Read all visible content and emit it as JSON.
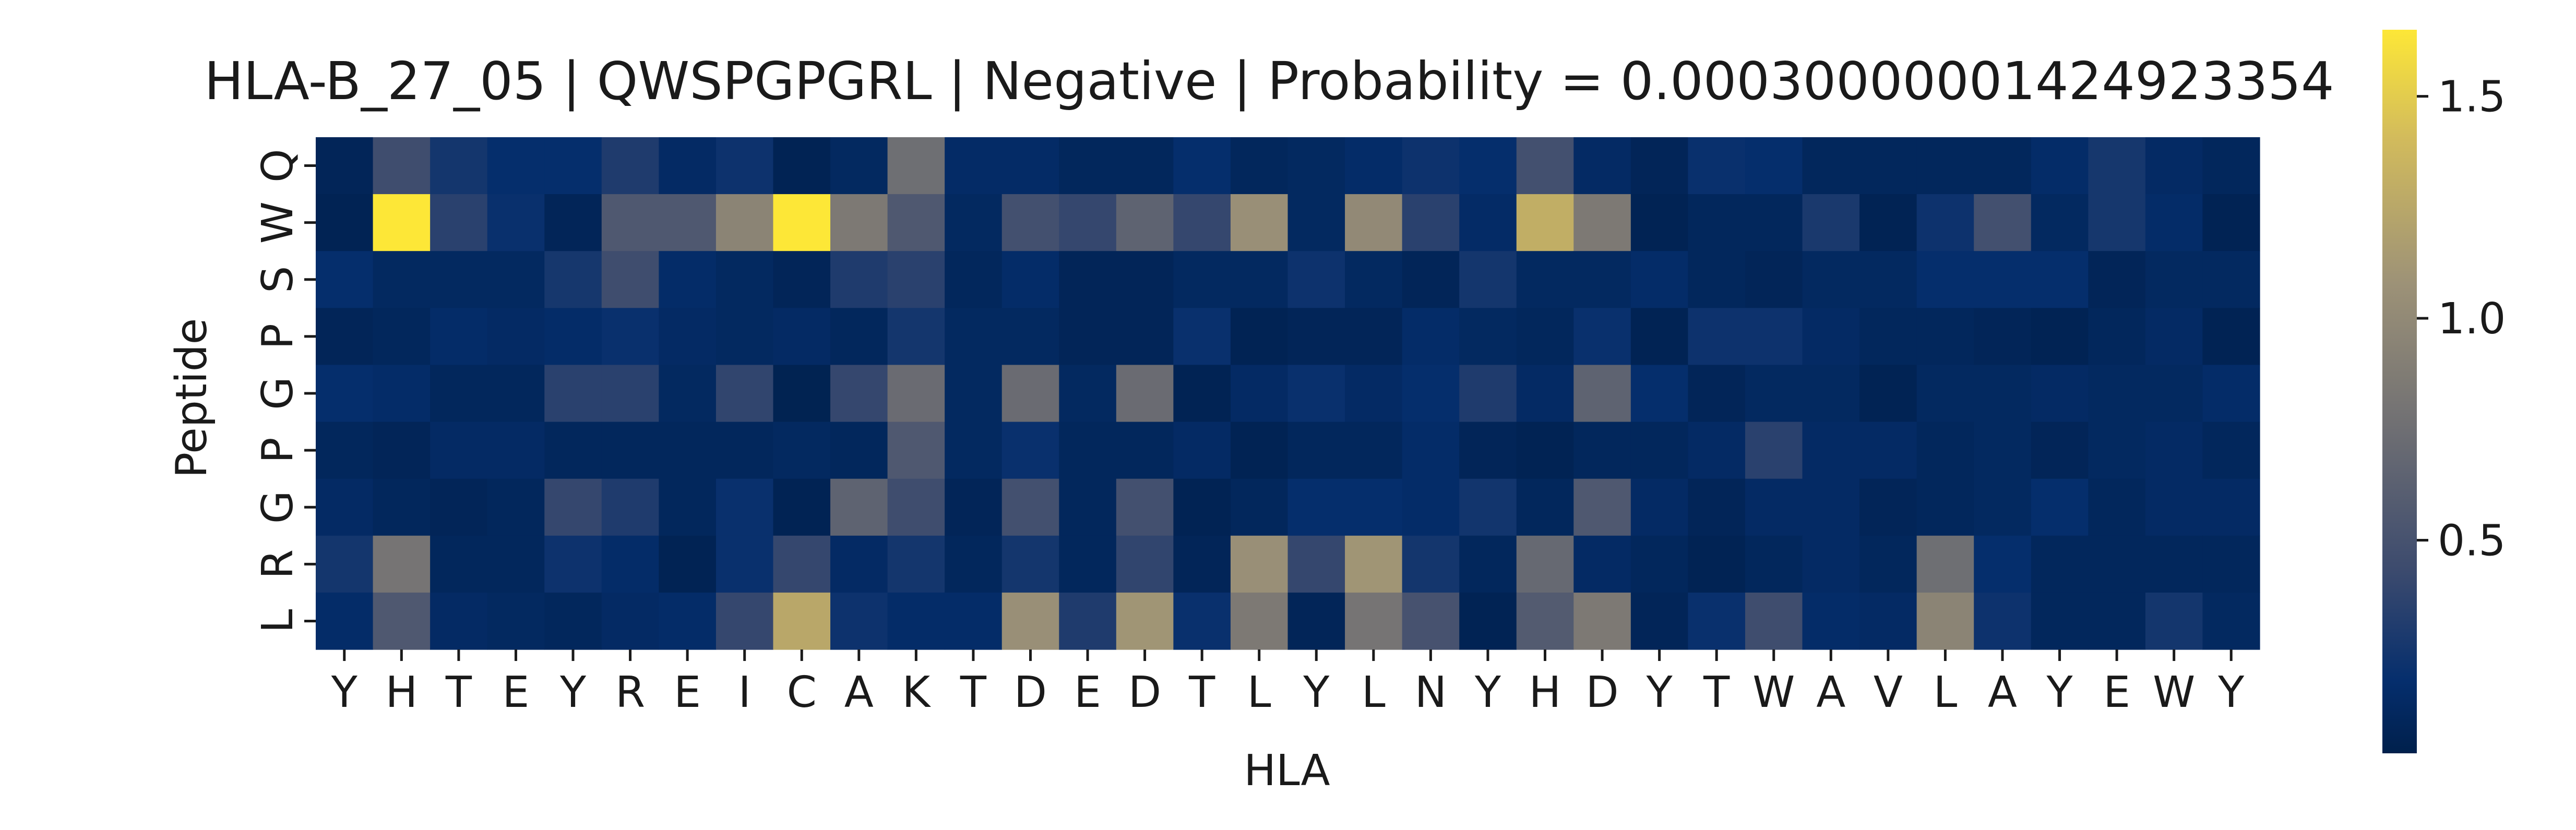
{
  "chart_data": {
    "type": "heatmap",
    "title": "HLA-B_27_05 | QWSPGPGRL | Negative | Probability = 0.00030000001424923354",
    "xlabel": "HLA",
    "ylabel": "Peptide",
    "x_categories": [
      "Y",
      "H",
      "T",
      "E",
      "Y",
      "R",
      "E",
      "I",
      "C",
      "A",
      "K",
      "T",
      "D",
      "E",
      "D",
      "T",
      "L",
      "Y",
      "L",
      "N",
      "Y",
      "H",
      "D",
      "Y",
      "T",
      "W",
      "A",
      "V",
      "L",
      "A",
      "Y",
      "E",
      "W",
      "Y"
    ],
    "y_categories": [
      "Q",
      "W",
      "S",
      "P",
      "G",
      "P",
      "G",
      "R",
      "L"
    ],
    "colorbar": {
      "colormap": "cividis",
      "range": [
        0.02,
        1.65
      ],
      "ticks": [
        0.5,
        1.0,
        1.5
      ],
      "tick_labels": [
        "0.5",
        "1.0",
        "1.5"
      ]
    },
    "values": [
      [
        0.08,
        0.45,
        0.25,
        0.18,
        0.18,
        0.3,
        0.14,
        0.22,
        0.06,
        0.12,
        0.75,
        0.15,
        0.15,
        0.1,
        0.1,
        0.18,
        0.1,
        0.12,
        0.16,
        0.22,
        0.18,
        0.48,
        0.14,
        0.08,
        0.2,
        0.18,
        0.1,
        0.1,
        0.1,
        0.1,
        0.16,
        0.26,
        0.14,
        0.1
      ],
      [
        0.06,
        1.65,
        0.35,
        0.2,
        0.08,
        0.55,
        0.55,
        0.95,
        1.65,
        0.85,
        0.55,
        0.12,
        0.48,
        0.4,
        0.65,
        0.4,
        1.05,
        0.12,
        1.0,
        0.35,
        0.15,
        1.3,
        0.85,
        0.06,
        0.1,
        0.1,
        0.28,
        0.06,
        0.22,
        0.48,
        0.12,
        0.26,
        0.16,
        0.06
      ],
      [
        0.18,
        0.12,
        0.12,
        0.12,
        0.26,
        0.45,
        0.16,
        0.12,
        0.08,
        0.3,
        0.35,
        0.1,
        0.16,
        0.08,
        0.08,
        0.12,
        0.12,
        0.22,
        0.12,
        0.08,
        0.25,
        0.12,
        0.12,
        0.16,
        0.1,
        0.08,
        0.12,
        0.12,
        0.18,
        0.18,
        0.18,
        0.08,
        0.12,
        0.12
      ],
      [
        0.08,
        0.1,
        0.16,
        0.14,
        0.16,
        0.2,
        0.14,
        0.12,
        0.14,
        0.1,
        0.25,
        0.12,
        0.12,
        0.08,
        0.08,
        0.2,
        0.06,
        0.08,
        0.08,
        0.16,
        0.12,
        0.1,
        0.2,
        0.06,
        0.22,
        0.22,
        0.14,
        0.1,
        0.1,
        0.08,
        0.06,
        0.1,
        0.14,
        0.06
      ],
      [
        0.18,
        0.16,
        0.1,
        0.1,
        0.35,
        0.35,
        0.12,
        0.38,
        0.05,
        0.4,
        0.72,
        0.12,
        0.72,
        0.12,
        0.72,
        0.06,
        0.14,
        0.2,
        0.14,
        0.18,
        0.3,
        0.14,
        0.65,
        0.18,
        0.08,
        0.12,
        0.12,
        0.06,
        0.12,
        0.12,
        0.14,
        0.12,
        0.12,
        0.16
      ],
      [
        0.1,
        0.08,
        0.14,
        0.14,
        0.1,
        0.1,
        0.1,
        0.1,
        0.12,
        0.1,
        0.55,
        0.12,
        0.2,
        0.1,
        0.1,
        0.14,
        0.06,
        0.1,
        0.1,
        0.16,
        0.08,
        0.06,
        0.1,
        0.1,
        0.14,
        0.35,
        0.14,
        0.14,
        0.1,
        0.12,
        0.08,
        0.12,
        0.14,
        0.1
      ],
      [
        0.14,
        0.1,
        0.08,
        0.1,
        0.4,
        0.3,
        0.1,
        0.2,
        0.06,
        0.65,
        0.45,
        0.08,
        0.48,
        0.1,
        0.48,
        0.06,
        0.1,
        0.18,
        0.18,
        0.16,
        0.24,
        0.1,
        0.55,
        0.14,
        0.08,
        0.14,
        0.14,
        0.08,
        0.1,
        0.12,
        0.18,
        0.1,
        0.14,
        0.14
      ],
      [
        0.25,
        0.8,
        0.1,
        0.1,
        0.22,
        0.16,
        0.06,
        0.2,
        0.4,
        0.14,
        0.25,
        0.1,
        0.25,
        0.1,
        0.38,
        0.08,
        1.05,
        0.4,
        1.1,
        0.25,
        0.1,
        0.7,
        0.14,
        0.1,
        0.06,
        0.1,
        0.14,
        0.1,
        0.75,
        0.18,
        0.1,
        0.1,
        0.1,
        0.1
      ],
      [
        0.16,
        0.55,
        0.14,
        0.12,
        0.1,
        0.14,
        0.16,
        0.4,
        1.25,
        0.22,
        0.16,
        0.16,
        1.05,
        0.3,
        1.1,
        0.2,
        0.85,
        0.08,
        0.8,
        0.5,
        0.06,
        0.58,
        0.85,
        0.08,
        0.2,
        0.45,
        0.16,
        0.14,
        0.95,
        0.22,
        0.1,
        0.1,
        0.25,
        0.12
      ]
    ]
  }
}
